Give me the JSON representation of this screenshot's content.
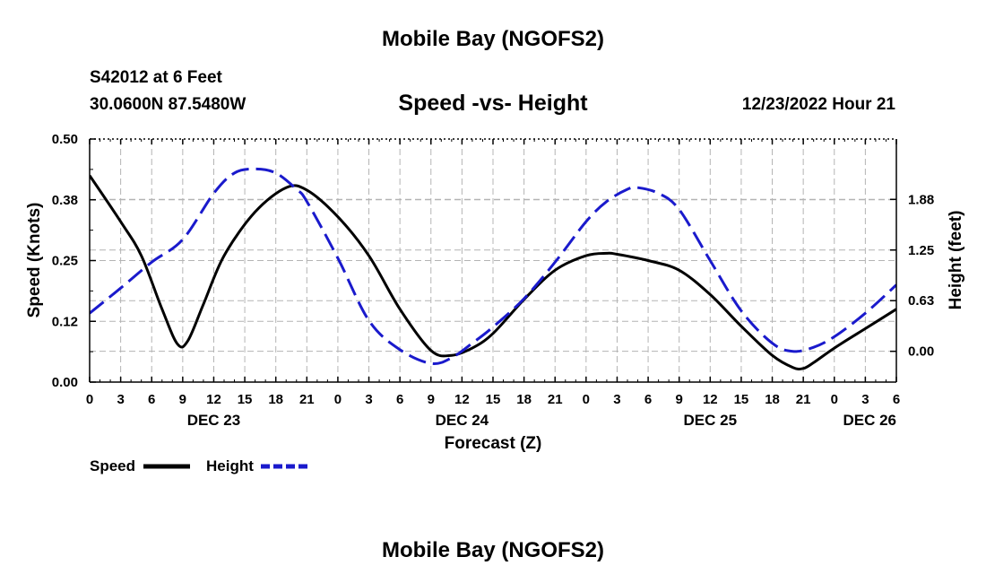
{
  "page": {
    "title": "Mobile Bay (NGOFS2)",
    "station": "S42012 at 6 Feet",
    "coords": "30.0600N  87.5480W",
    "subtitle": "Speed -vs- Height",
    "timestamp": "12/23/2022 Hour 21",
    "footer_title": "Mobile Bay (NGOFS2)"
  },
  "chart_data": {
    "type": "line",
    "title": "Speed -vs- Height",
    "xlabel": "Forecast (Z)",
    "ylabel_left": "Speed (Knots)",
    "ylabel_right": "Height (feet)",
    "x_range": [
      0,
      78
    ],
    "y_left_range": [
      0,
      0.5
    ],
    "y_right_range": [
      -0.38,
      2.62
    ],
    "y_left_ticks": [
      {
        "v": 0,
        "label": "0.00"
      },
      {
        "v": 0.125,
        "label": "0.12"
      },
      {
        "v": 0.25,
        "label": "0.25"
      },
      {
        "v": 0.375,
        "label": "0.38"
      },
      {
        "v": 0.5,
        "label": "0.50"
      }
    ],
    "y_right_ticks": [
      {
        "v": 0,
        "label": "0.00"
      },
      {
        "v": 0.625,
        "label": "0.63"
      },
      {
        "v": 1.25,
        "label": "1.25"
      },
      {
        "v": 1.875,
        "label": "1.88"
      }
    ],
    "x_ticks": [
      "0",
      "3",
      "6",
      "9",
      "12",
      "15",
      "18",
      "21",
      "0",
      "3",
      "6",
      "9",
      "12",
      "15",
      "18",
      "21",
      "0",
      "3",
      "6",
      "9",
      "12",
      "15",
      "18",
      "21",
      "0",
      "3",
      "6"
    ],
    "date_labels": [
      {
        "x": 12,
        "label": "DEC 23"
      },
      {
        "x": 36,
        "label": "DEC 24"
      },
      {
        "x": 60,
        "label": "DEC 25"
      },
      {
        "x": 78,
        "label": "DEC 26"
      }
    ],
    "grid": true,
    "legend": {
      "position": "bottom-left",
      "entries": [
        "Speed",
        "Height"
      ]
    },
    "series": [
      {
        "name": "Speed",
        "axis": "left",
        "color": "#000000",
        "style": "solid",
        "x": [
          0,
          3,
          5,
          7,
          8.5,
          9.5,
          11,
          13,
          16,
          19,
          21,
          24,
          27,
          30,
          33,
          35,
          37,
          39,
          42,
          45,
          48,
          50,
          51,
          54,
          57,
          60,
          63,
          66,
          68,
          69,
          70,
          72,
          75,
          78
        ],
        "values": [
          0.425,
          0.33,
          0.26,
          0.15,
          0.078,
          0.085,
          0.16,
          0.26,
          0.35,
          0.4,
          0.395,
          0.34,
          0.26,
          0.15,
          0.065,
          0.055,
          0.07,
          0.1,
          0.17,
          0.23,
          0.26,
          0.265,
          0.263,
          0.25,
          0.23,
          0.18,
          0.115,
          0.055,
          0.03,
          0.028,
          0.04,
          0.07,
          0.11,
          0.15
        ]
      },
      {
        "name": "Height",
        "axis": "right",
        "color": "#1a1acc",
        "style": "dashed",
        "x": [
          0,
          3,
          6,
          9,
          12,
          14,
          16,
          18,
          20,
          21,
          24,
          27,
          30,
          33,
          35,
          37,
          39,
          42,
          45,
          48,
          50,
          52,
          53,
          55,
          57,
          60,
          63,
          66,
          68,
          70,
          72,
          75,
          78
        ],
        "values": [
          0.47,
          0.78,
          1.1,
          1.38,
          1.95,
          2.2,
          2.25,
          2.2,
          2.0,
          1.85,
          1.15,
          0.38,
          0.02,
          -0.15,
          -0.08,
          0.1,
          0.3,
          0.65,
          1.1,
          1.6,
          1.85,
          2.0,
          2.02,
          1.95,
          1.75,
          1.12,
          0.5,
          0.1,
          0.0,
          0.05,
          0.18,
          0.47,
          0.82
        ]
      }
    ]
  }
}
